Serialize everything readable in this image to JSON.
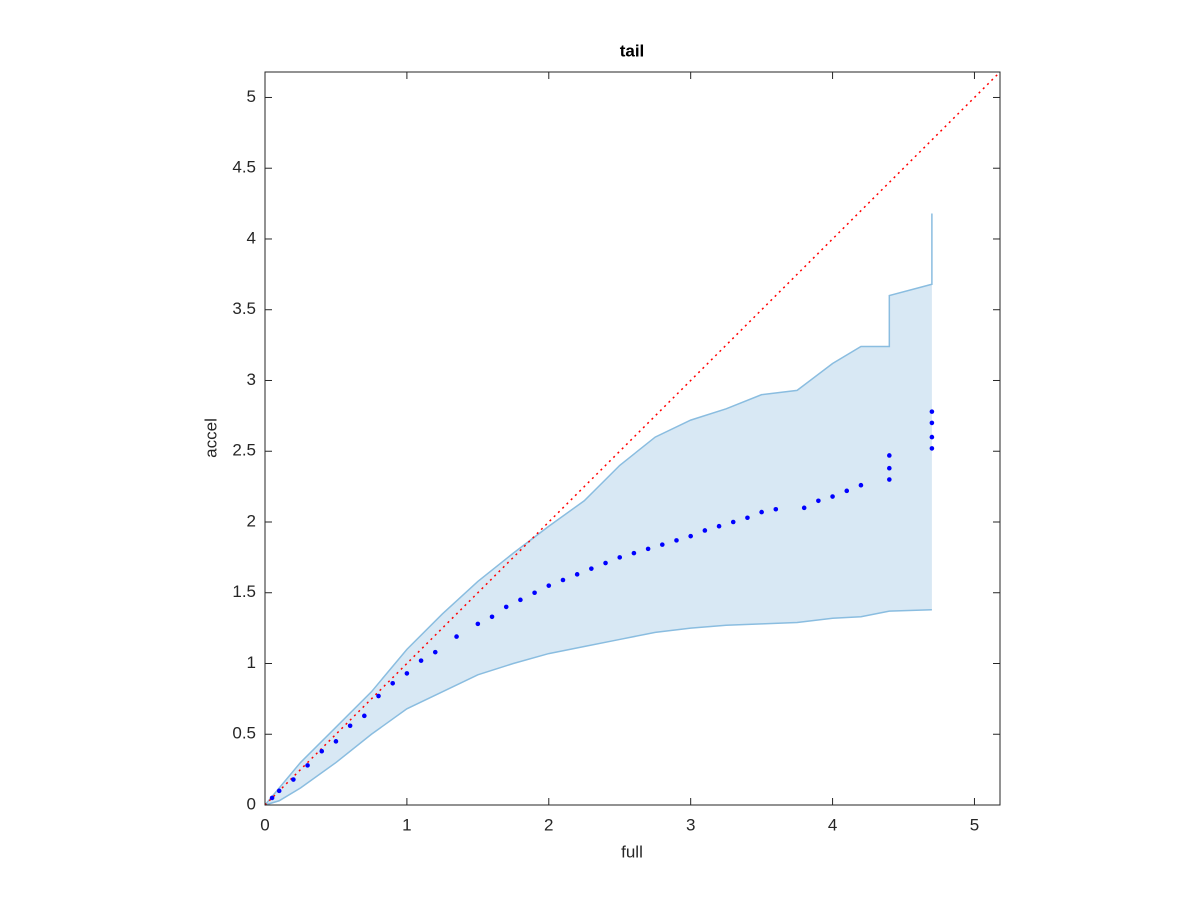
{
  "chart_data": {
    "type": "scatter",
    "title": "tail",
    "x_label": "full",
    "y_label": "accel",
    "xlim": [
      0,
      5.18
    ],
    "ylim": [
      0,
      5.18
    ],
    "xticks": [
      0,
      1,
      2,
      3,
      4,
      5
    ],
    "yticks": [
      0,
      0.5,
      1,
      1.5,
      2,
      2.5,
      3,
      3.5,
      4,
      4.5,
      5
    ],
    "band": {
      "color": "#d8e8f4",
      "edge_color": "#8abde0",
      "x": [
        0,
        0.1,
        0.25,
        0.5,
        0.75,
        1.0,
        1.25,
        1.5,
        1.75,
        2.0,
        2.25,
        2.5,
        2.75,
        3.0,
        3.25,
        3.5,
        3.75,
        4.0,
        4.2,
        4.4,
        4.4,
        4.7,
        4.7
      ],
      "lower": [
        0,
        0.03,
        0.12,
        0.3,
        0.5,
        0.68,
        0.8,
        0.92,
        1.0,
        1.07,
        1.12,
        1.17,
        1.22,
        1.25,
        1.27,
        1.28,
        1.29,
        1.32,
        1.33,
        1.37,
        1.37,
        1.38,
        1.38
      ],
      "upper": [
        0,
        0.12,
        0.3,
        0.55,
        0.8,
        1.1,
        1.35,
        1.58,
        1.78,
        1.97,
        2.15,
        2.4,
        2.6,
        2.72,
        2.8,
        2.9,
        2.93,
        3.12,
        3.24,
        3.24,
        3.6,
        3.68,
        4.18
      ]
    },
    "reference_line": {
      "color": "#ff0000",
      "x": [
        0,
        5.18
      ],
      "values": [
        0,
        5.18
      ]
    },
    "series": [
      {
        "color": "#0000ff",
        "x": [
          0.05,
          0.1,
          0.2,
          0.3,
          0.4,
          0.5,
          0.6,
          0.7,
          0.8,
          0.9,
          1.0,
          1.1,
          1.2,
          1.35,
          1.5,
          1.6,
          1.7,
          1.8,
          1.9,
          2.0,
          2.1,
          2.2,
          2.3,
          2.4,
          2.5,
          2.6,
          2.7,
          2.8,
          2.9,
          3.0,
          3.1,
          3.2,
          3.3,
          3.4,
          3.5,
          3.6,
          3.8,
          3.9,
          4.0,
          4.1,
          4.2,
          4.4,
          4.4,
          4.4,
          4.7,
          4.7,
          4.7,
          4.7
        ],
        "values": [
          0.05,
          0.1,
          0.18,
          0.28,
          0.38,
          0.45,
          0.56,
          0.63,
          0.77,
          0.86,
          0.93,
          1.02,
          1.08,
          1.19,
          1.28,
          1.33,
          1.4,
          1.45,
          1.5,
          1.55,
          1.59,
          1.63,
          1.67,
          1.71,
          1.75,
          1.78,
          1.81,
          1.84,
          1.87,
          1.9,
          1.94,
          1.97,
          2.0,
          2.03,
          2.07,
          2.09,
          2.1,
          2.15,
          2.18,
          2.22,
          2.26,
          2.3,
          2.38,
          2.47,
          2.52,
          2.6,
          2.7,
          2.78
        ]
      }
    ]
  }
}
